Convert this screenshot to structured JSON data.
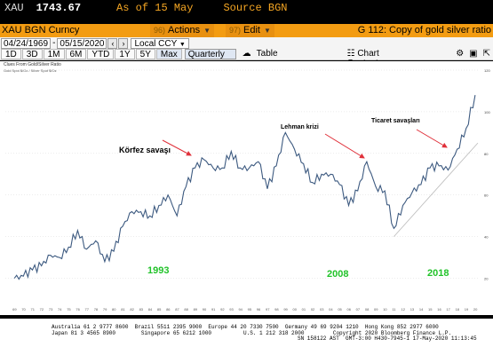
{
  "top_bar": {
    "ticker": "XAU",
    "price": "1743.67",
    "as_of": "As of 15 May",
    "source": "Source BGN"
  },
  "command_bar": {
    "security": "XAU BGN Curncy",
    "actions_num": "96)",
    "actions_label": "Actions",
    "edit_num": "97)",
    "edit_label": "Edit",
    "chart_title": "G 112: Copy of gold silver ratio"
  },
  "date_row": {
    "start_date": "04/24/1969",
    "end_date": "05/15/2020",
    "currency": "Local CCY"
  },
  "period_row": {
    "periods": [
      "1D",
      "3D",
      "1M",
      "6M",
      "YTD",
      "1Y",
      "5Y",
      "Max"
    ],
    "frequency": "Quarterly",
    "table_label": "Table",
    "chart_content_label": "Chart Content"
  },
  "chart": {
    "header_text": "Clues From Gold/Silver Ratio",
    "legend_text": "Gold Spot $/Oz / Silver Spot $/Oz",
    "annotations": {
      "gulf_war": "Körfez savaşı",
      "lehman": "Lehman krizi",
      "trade_war": "Ticaret savaşları",
      "year_1993": "1993",
      "year_2008": "2008",
      "year_2018": "2018"
    },
    "colors": {
      "line": "#3d5a80",
      "annotation_arrow": "#e0303a",
      "year_label": "#22c32a",
      "trendline": "#bbbbbb"
    }
  },
  "chart_data": {
    "type": "line",
    "title": "Clues From Gold/Silver Ratio",
    "series": [
      {
        "name": "Gold Spot $/Oz / Silver Spot $/Oz",
        "x": [
          1969,
          1970,
          1971,
          1972,
          1973,
          1974,
          1975,
          1976,
          1977,
          1978,
          1979,
          1980,
          1981,
          1982,
          1983,
          1984,
          1985,
          1986,
          1987,
          1988,
          1989,
          1990,
          1991,
          1992,
          1993,
          1994,
          1995,
          1996,
          1997,
          1998,
          1999,
          2000,
          2001,
          2002,
          2003,
          2004,
          2005,
          2006,
          2007,
          2008,
          2009,
          2010,
          2011,
          2012,
          2013,
          2014,
          2015,
          2016,
          2017,
          2018,
          2019,
          2020
        ],
        "y": [
          20,
          21,
          24,
          26,
          31,
          30,
          35,
          43,
          34,
          38,
          28,
          33,
          45,
          52,
          52,
          50,
          55,
          60,
          50,
          64,
          73,
          77,
          73,
          73,
          81,
          73,
          73,
          76,
          63,
          74,
          90,
          82,
          75,
          66,
          70,
          70,
          65,
          55,
          62,
          76,
          64,
          62,
          44,
          55,
          61,
          65,
          73,
          74,
          72,
          82,
          92,
          108
        ]
      }
    ],
    "ylim": [
      10,
      120
    ],
    "yticks": [
      20,
      40,
      60,
      80,
      100,
      120
    ],
    "xlim": [
      1968,
      2020.5
    ]
  },
  "tape": {
    "line1": "Australia 61 2 9777 8600  Brazil 5511 2395 9000  Europe 44 20 7330 7500  Germany 49 69 9204 1210  Hong Kong 852 2977 6000",
    "line2": "Japan 81 3 4565 8900        Singapore 65 6212 1000          U.S. 1 212 318 2000         Copyright 2020 Bloomberg Finance L.P.",
    "line3": "SN 158122 AST  GMT-3:00 H430-7945-1 17-May-2020 11:13:45"
  }
}
